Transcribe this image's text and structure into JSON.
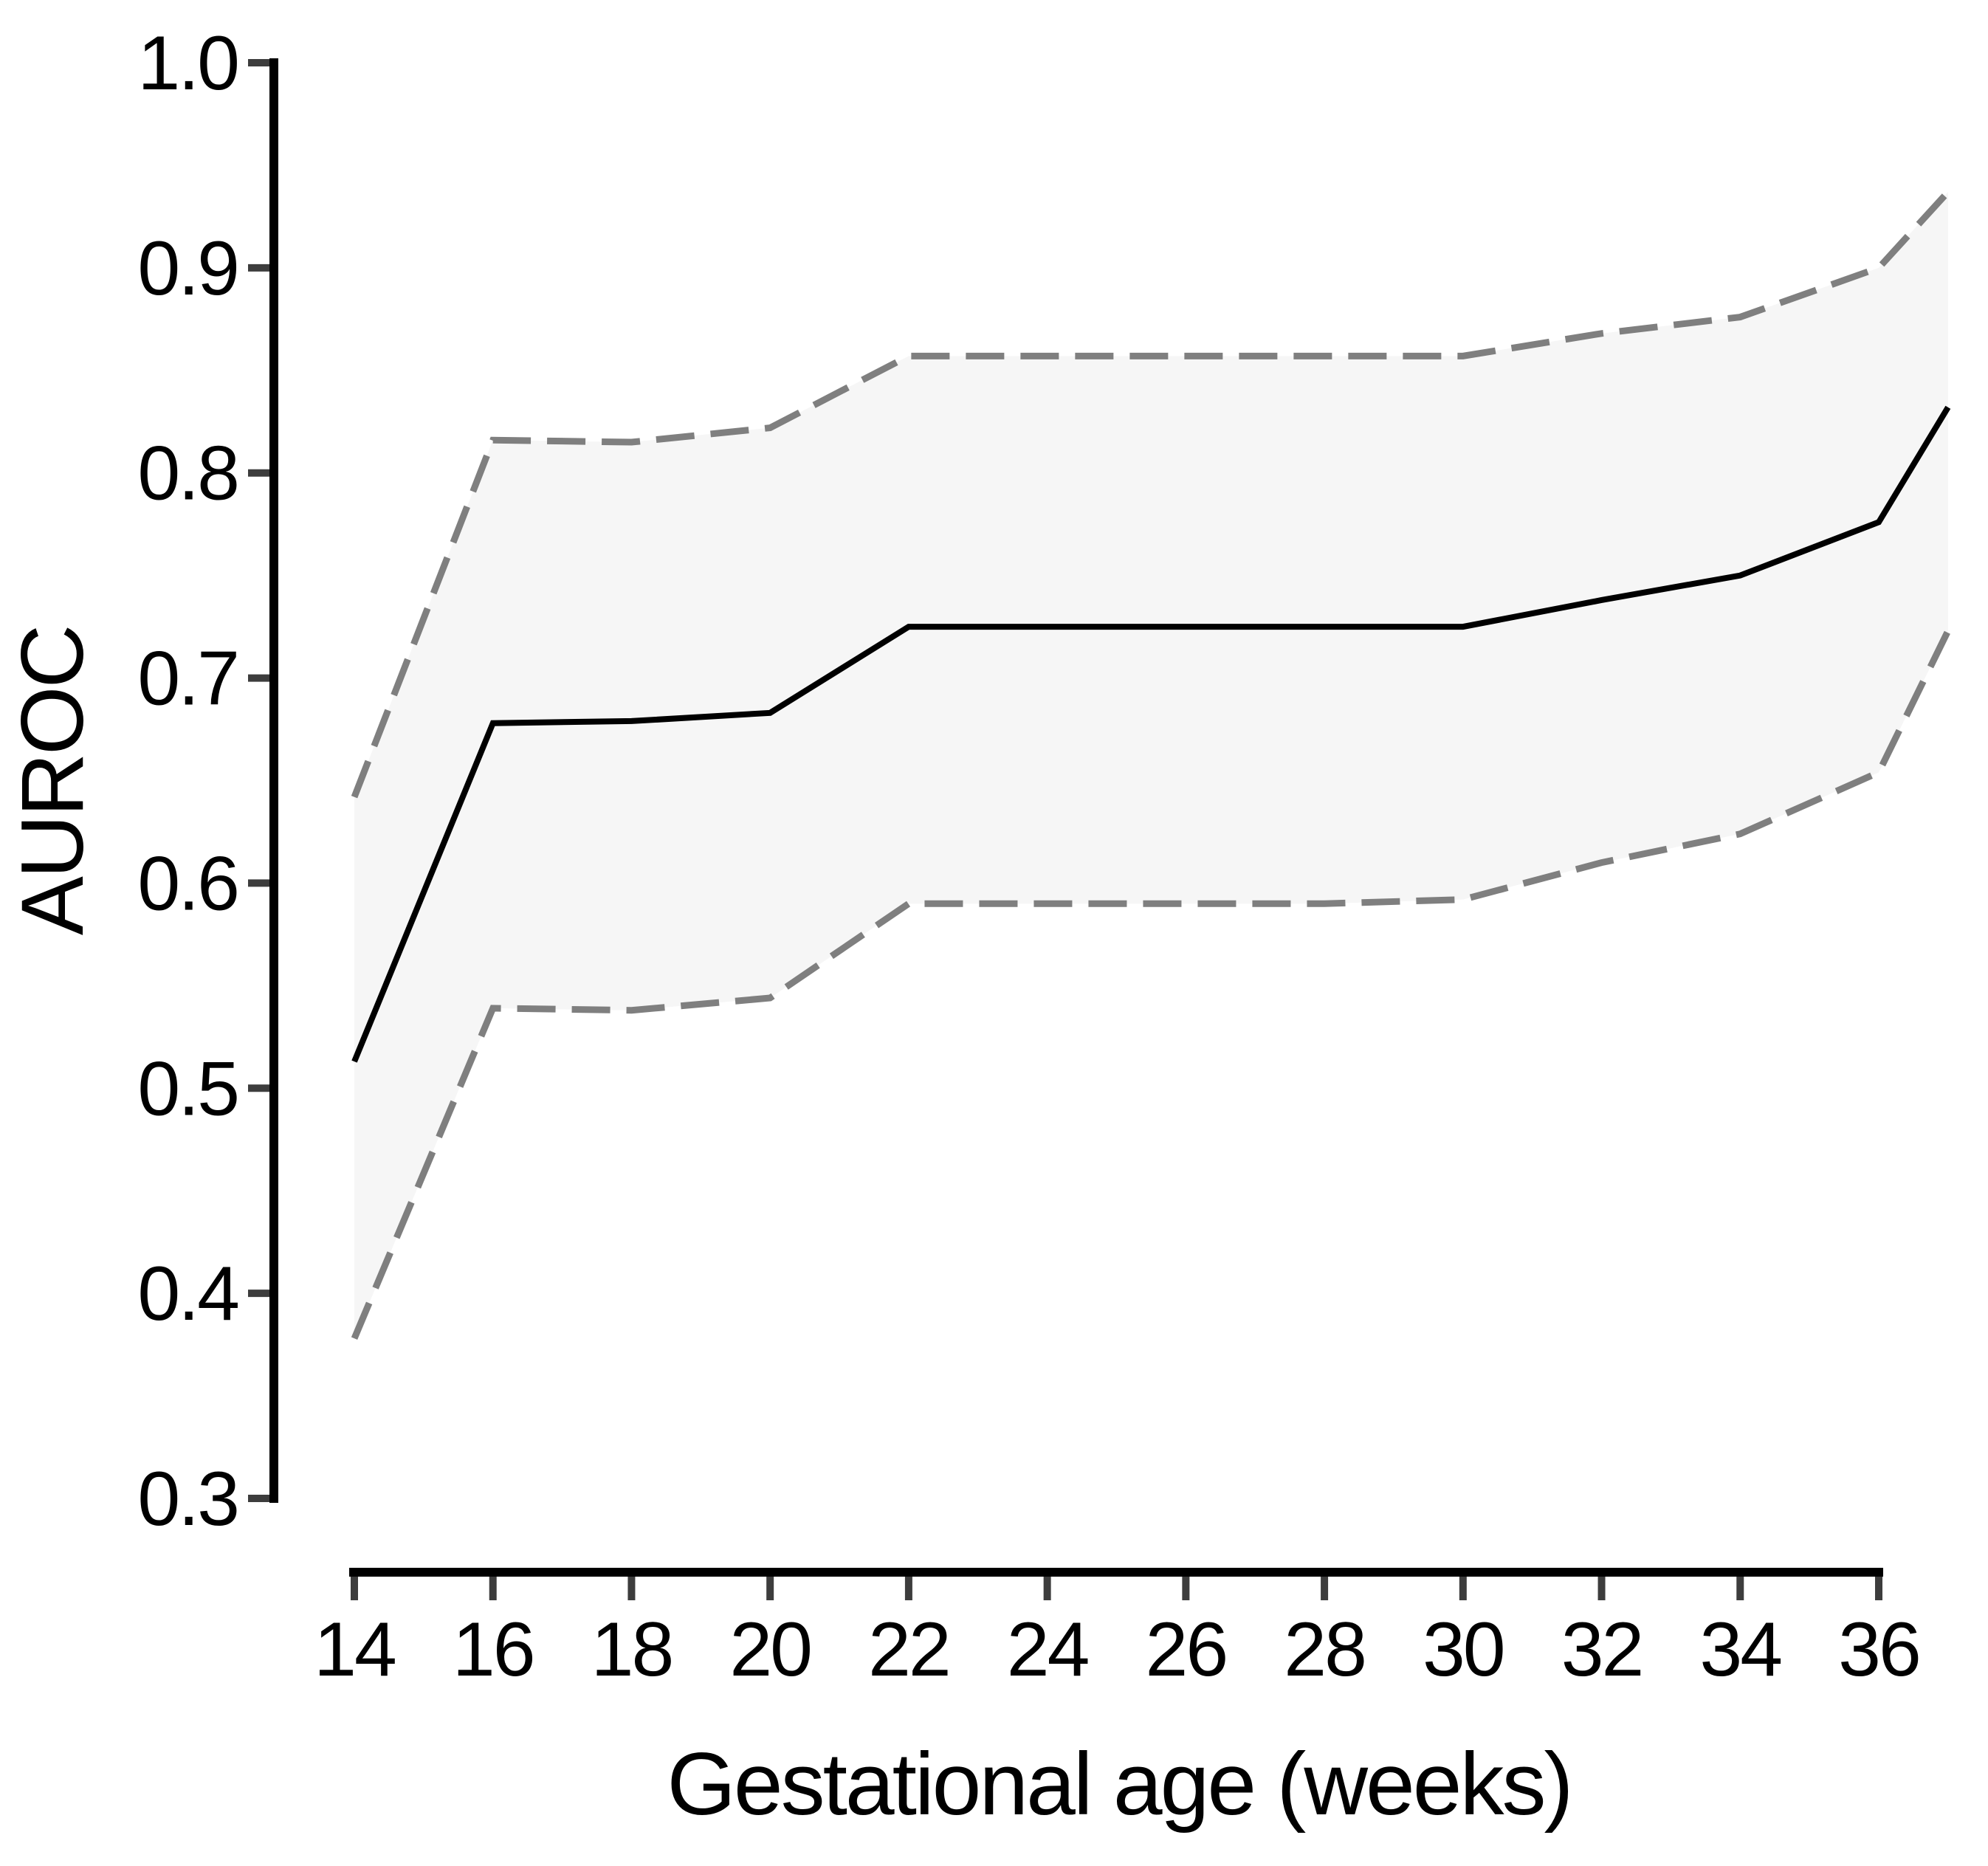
{
  "chart_data": {
    "type": "line",
    "title": "",
    "xlabel": "Gestational age (weeks)",
    "ylabel": "AUROC",
    "x": [
      14,
      16,
      18,
      20,
      22,
      24,
      26,
      28,
      30,
      32,
      34,
      36,
      37
    ],
    "series": [
      {
        "name": "auroc-median",
        "style": "solid",
        "color": "#000000",
        "values": [
          0.513,
          0.678,
          0.679,
          0.683,
          0.725,
          0.725,
          0.725,
          0.725,
          0.725,
          0.738,
          0.75,
          0.776,
          0.832
        ]
      },
      {
        "name": "ci-upper",
        "style": "dashed",
        "color": "#7f7f7f",
        "values": [
          0.642,
          0.816,
          0.815,
          0.822,
          0.857,
          0.857,
          0.857,
          0.857,
          0.857,
          0.868,
          0.876,
          0.9,
          0.937
        ]
      },
      {
        "name": "ci-lower",
        "style": "dashed",
        "color": "#7f7f7f",
        "values": [
          0.378,
          0.539,
          0.538,
          0.544,
          0.59,
          0.59,
          0.59,
          0.59,
          0.592,
          0.61,
          0.624,
          0.654,
          0.723
        ]
      }
    ],
    "band": {
      "upper": "ci-upper",
      "lower": "ci-lower",
      "fill": "#f6f6f6"
    },
    "x_ticks": [
      14,
      16,
      18,
      20,
      22,
      24,
      26,
      28,
      30,
      32,
      34,
      36
    ],
    "x_tick_labels": [
      "14",
      "16",
      "18",
      "20",
      "22",
      "24",
      "26",
      "28",
      "30",
      "32",
      "34",
      "36"
    ],
    "y_ticks": [
      0.3,
      0.4,
      0.5,
      0.6,
      0.7,
      0.8,
      0.9,
      1.0
    ],
    "y_tick_labels": [
      "0.3",
      "0.4",
      "0.5",
      "0.6",
      "0.7",
      "0.8",
      "0.9",
      "1.0"
    ],
    "xlim": [
      14,
      37
    ],
    "ylim": [
      0.3,
      1.0
    ],
    "grid": false,
    "legend": "none",
    "colors": {
      "line": "#000000",
      "ci": "#7f7f7f",
      "band": "#f6f6f6",
      "axis": "#000000",
      "tick": "#3d3d3d"
    }
  }
}
